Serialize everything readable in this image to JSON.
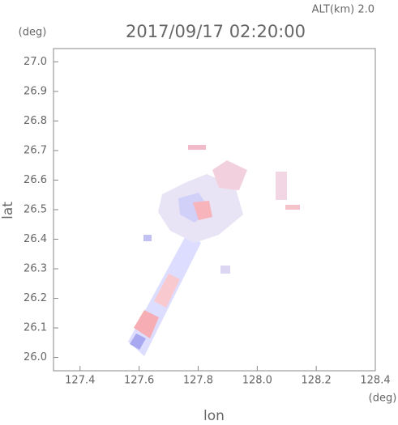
{
  "chart_data": {
    "type": "scatter",
    "title": "2017/09/17 02:20:00",
    "subtitle": "ALT(km) 2.0",
    "x_label": "lon",
    "y_label": "lat",
    "x_unit": "(deg)",
    "y_unit": "(deg)",
    "xlim": [
      127.31,
      128.4
    ],
    "ylim": [
      25.955,
      27.045
    ],
    "xticks": [
      127.4,
      127.6,
      127.8,
      {
        "value": 128.0,
        "label": "128.0"
      },
      128.2,
      128.4
    ],
    "yticks": [
      {
        "value": 26.0,
        "label": "26.0"
      },
      26.1,
      26.2,
      26.3,
      26.4,
      26.5,
      26.6,
      26.7,
      26.8,
      26.9,
      {
        "value": 27.0,
        "label": "27.0"
      }
    ]
  }
}
